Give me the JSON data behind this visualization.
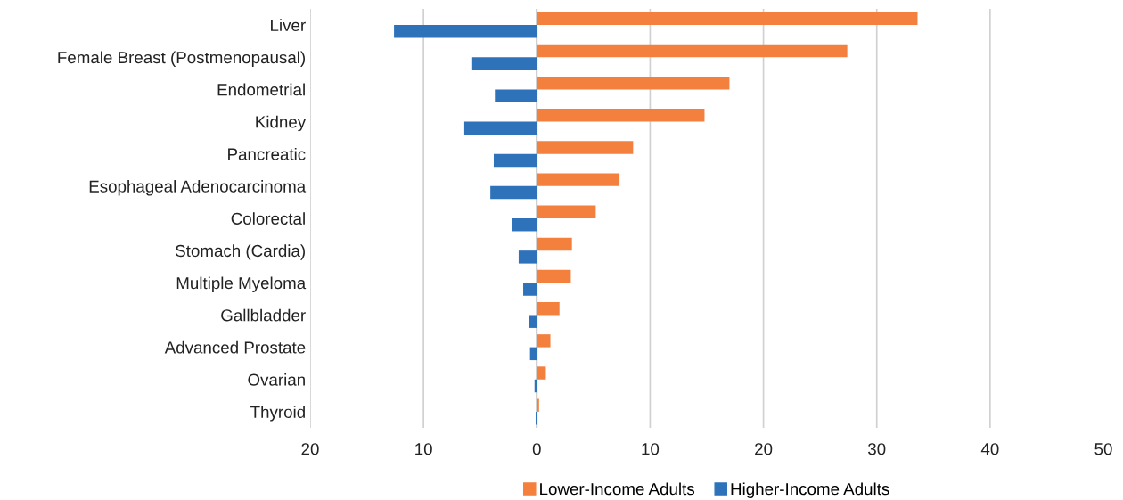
{
  "chart_data": {
    "type": "bar",
    "orientation": "horizontal",
    "categories": [
      "Liver",
      "Female Breast (Postmenopausal)",
      "Endometrial",
      "Kidney",
      "Pancreatic",
      "Esophageal Adenocarcinoma",
      "Colorectal",
      "Stomach (Cardia)",
      "Multiple Myeloma",
      "Gallbladder",
      "Advanced Prostate",
      "Ovarian",
      "Thyroid"
    ],
    "series": [
      {
        "name": "Lower-Income Adults",
        "color": "#f4803e",
        "values": [
          33.6,
          27.4,
          17.0,
          14.8,
          8.5,
          7.3,
          5.2,
          3.1,
          3.0,
          2.0,
          1.2,
          0.8,
          0.2
        ]
      },
      {
        "name": "Higher-Income Adults",
        "color": "#2e72b9",
        "values": [
          -12.6,
          -5.7,
          -3.7,
          -6.4,
          -3.8,
          -4.1,
          -2.2,
          -1.6,
          -1.2,
          -0.7,
          -0.6,
          -0.2,
          -0.1
        ]
      }
    ],
    "xlim": [
      -20,
      50
    ],
    "xticks": [
      {
        "value": -20,
        "label": "20"
      },
      {
        "value": -10,
        "label": "10"
      },
      0,
      10,
      20,
      30,
      40,
      50
    ],
    "grid": "x",
    "legend": "bottom"
  }
}
